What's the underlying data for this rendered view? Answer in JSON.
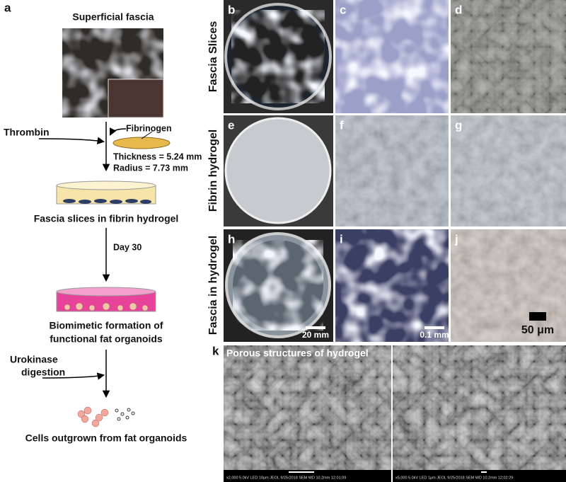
{
  "workflow": {
    "label": "a",
    "tissue_title": "Superficial fascia",
    "thrombin": "Thrombin",
    "fibrinogen": "Fibrinogen",
    "thickness": "Thickness = 5.24 mm",
    "radius": "Radius = 7.73 mm",
    "step1": "Fascia slices in fibrin hydrogel",
    "day": "Day 30",
    "step2": [
      "Biomimetic formation of",
      "functional fat organoids"
    ],
    "enzyme": [
      "Urokinase",
      "digestion"
    ],
    "step3": "Cells outgrown from fat organoids"
  },
  "grid": {
    "rows": [
      {
        "label": "Fascia Slices",
        "panels": [
          "b",
          "c",
          "d"
        ]
      },
      {
        "label": "Fibrin hydrogel",
        "panels": [
          "e",
          "f",
          "g"
        ]
      },
      {
        "label": "Fascia in hydrogel",
        "panels": [
          "h",
          "i",
          "j"
        ]
      }
    ],
    "scale_bars": [
      "20 mm",
      "0.1 mm",
      "50 μm"
    ]
  },
  "sem": {
    "label": "k",
    "title": "Porous structures of hydrogel",
    "footers": [
      "x2,000   5.0kV   LED   10μm   JEOL   9/25/2018   SEM   WD 10.2mm   12:01:09",
      "x5,000   5.0kV   LED   1μm   JEOL   9/25/2018   SEM   WD 10.2mm   12:02:29"
    ]
  }
}
